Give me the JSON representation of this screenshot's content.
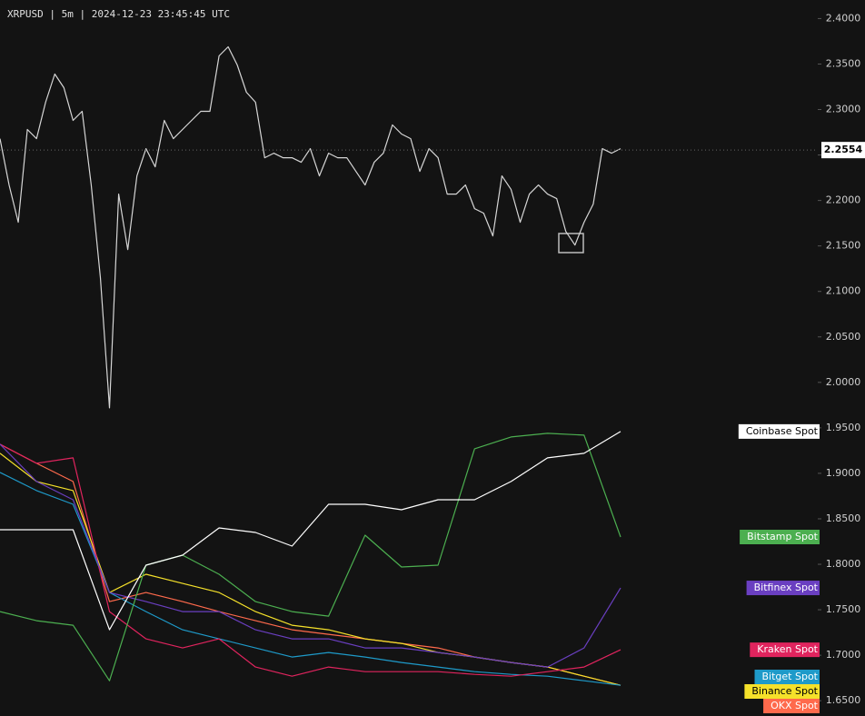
{
  "chart_data": {
    "type": "line",
    "title": "XRPUSD | 5m | 2024-12-23 23:45:45 UTC",
    "ylim": [
      1.6332,
      2.4204
    ],
    "yticks": [
      {
        "value": 2.4,
        "label": "2.4000"
      },
      {
        "value": 2.35,
        "label": "2.3500"
      },
      {
        "value": 2.3,
        "label": "2.3000"
      },
      {
        "value": 2.25,
        "label": "2.2500"
      },
      {
        "value": 2.2,
        "label": "2.2000"
      },
      {
        "value": 2.15,
        "label": "2.1500"
      },
      {
        "value": 2.1,
        "label": "2.1000"
      },
      {
        "value": 2.05,
        "label": "2.0500"
      },
      {
        "value": 2.0,
        "label": "2.0000"
      },
      {
        "value": 1.95,
        "label": "1.9500"
      },
      {
        "value": 1.9,
        "label": "1.9000"
      },
      {
        "value": 1.85,
        "label": "1.8500"
      },
      {
        "value": 1.8,
        "label": "1.8000"
      },
      {
        "value": 1.75,
        "label": "1.7500"
      },
      {
        "value": 1.7,
        "label": "1.7000"
      },
      {
        "value": 1.65,
        "label": "1.6500"
      }
    ],
    "last_price": 2.2554,
    "price": {
      "color": "#d6d6d6",
      "values": [
        2.268,
        2.217,
        2.176,
        2.278,
        2.268,
        2.308,
        2.339,
        2.324,
        2.288,
        2.298,
        2.217,
        2.115,
        1.972,
        2.207,
        2.146,
        2.227,
        2.257,
        2.237,
        2.288,
        2.268,
        2.278,
        2.288,
        2.298,
        2.298,
        2.359,
        2.369,
        2.349,
        2.319,
        2.308,
        2.247,
        2.252,
        2.247,
        2.247,
        2.242,
        2.257,
        2.227,
        2.252,
        2.247,
        2.247,
        2.232,
        2.217,
        2.242,
        2.252,
        2.283,
        2.273,
        2.268,
        2.232,
        2.257,
        2.247,
        2.207,
        2.207,
        2.217,
        2.191,
        2.186,
        2.161,
        2.227,
        2.212,
        2.176,
        2.207,
        2.217,
        2.207,
        2.202,
        2.166,
        2.151,
        2.176,
        2.196,
        2.257,
        2.252,
        2.257
      ]
    },
    "series": [
      {
        "name": "Coinbase Spot",
        "color": "#ffffff",
        "values": [
          1.838,
          1.838,
          1.838,
          1.728,
          1.799,
          1.81,
          1.84,
          1.835,
          1.82,
          1.866,
          1.866,
          1.86,
          1.871,
          1.871,
          1.891,
          1.917,
          1.922,
          1.946
        ]
      },
      {
        "name": "Bitstamp Spot",
        "color": "#4caf50",
        "values": [
          1.748,
          1.738,
          1.733,
          1.672,
          1.799,
          1.81,
          1.789,
          1.759,
          1.748,
          1.743,
          1.832,
          1.797,
          1.799,
          1.927,
          1.94,
          1.944,
          1.942,
          1.83
        ]
      },
      {
        "name": "Bitfinex Spot",
        "color": "#6a3fc1",
        "values": [
          1.932,
          1.891,
          1.871,
          1.769,
          1.759,
          1.748,
          1.748,
          1.728,
          1.718,
          1.718,
          1.708,
          1.708,
          1.703,
          1.698,
          1.692,
          1.687,
          1.708,
          1.774
        ]
      },
      {
        "name": "Kraken Spot",
        "color": "#e0245e",
        "values": [
          1.932,
          1.911,
          1.917,
          1.748,
          1.718,
          1.708,
          1.718,
          1.687,
          1.677,
          1.687,
          1.682,
          1.682,
          1.682,
          1.679,
          1.677,
          1.682,
          1.687,
          1.706
        ]
      },
      {
        "name": "Bitget Spot",
        "color": "#1e9ac9",
        "values": [
          1.901,
          1.881,
          1.866,
          1.769,
          1.748,
          1.728,
          1.718,
          1.708,
          1.698,
          1.703,
          1.698,
          1.692,
          1.687,
          1.682,
          1.679,
          1.677,
          1.672,
          1.667
        ]
      },
      {
        "name": "Binance Spot",
        "color": "#f5e12a",
        "values": [
          1.922,
          1.891,
          1.881,
          1.769,
          1.789,
          1.779,
          1.769,
          1.748,
          1.733,
          1.728,
          1.718,
          1.713,
          1.703,
          1.698,
          1.692,
          1.687,
          1.677,
          1.667
        ]
      },
      {
        "name": "OKX Spot",
        "color": "#ff6a4c",
        "values": [
          1.932,
          1.911,
          1.891,
          1.759,
          1.769,
          1.759,
          1.748,
          1.738,
          1.728,
          1.723,
          1.718,
          1.713,
          1.708,
          1.698,
          1.692,
          1.687,
          1.677,
          1.667
        ]
      }
    ]
  }
}
